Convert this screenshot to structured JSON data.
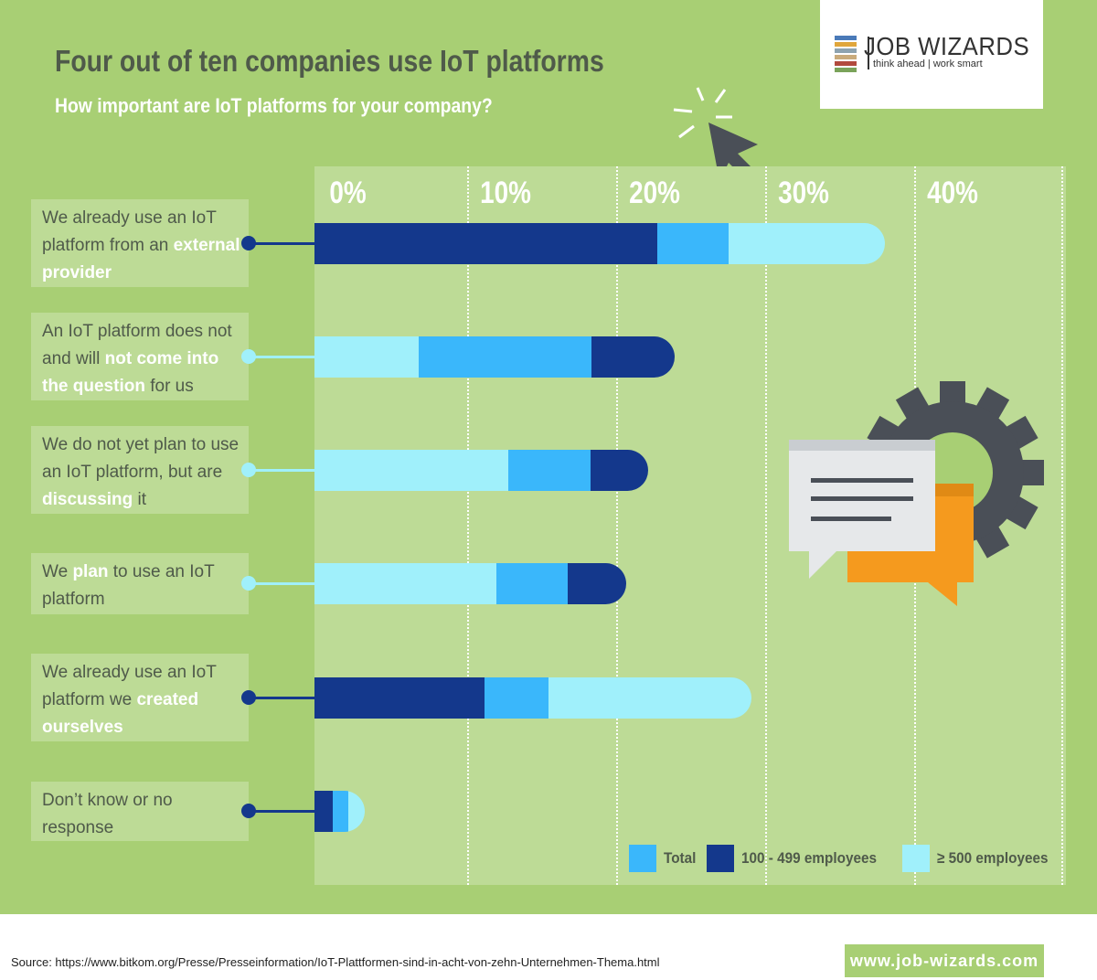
{
  "header": {
    "title": "Four out of ten companies use IoT platforms",
    "subtitle": "How important are IoT platforms for your company?"
  },
  "logo": {
    "name": "JOB WIZARDS",
    "tagline": "think ahead | work smart"
  },
  "footer": {
    "source": "Source: https://www.bitkom.org/Presse/Presseinformation/IoT-Plattformen-sind-in-acht-von-zehn-Unternehmen-Thema.html",
    "website": "www.job-wizards.com"
  },
  "colors": {
    "background": "#a8cf74",
    "plot_background": "#bddb96",
    "total": "#3ab7fb",
    "mid": "#14388c",
    "large": "#a0f0fb",
    "title": "#4f5a4a"
  },
  "chart_data": {
    "type": "bar",
    "orientation": "horizontal",
    "title": "Four out of ten companies use IoT platforms",
    "subtitle": "How important are IoT platforms for your company?",
    "x_ticks": [
      "0%",
      "10%",
      "20%",
      "30%",
      "40%"
    ],
    "xlim": [
      0,
      50
    ],
    "grid": true,
    "legend_position": "bottom-right",
    "legend": [
      {
        "key": "total",
        "label": "Total"
      },
      {
        "key": "mid",
        "label": "100 - 499 employees"
      },
      {
        "key": "large",
        "label": "≥ 500 employees"
      }
    ],
    "categories": [
      {
        "label_parts": [
          {
            "text": "We already use an IoT platform from an ",
            "bold": false
          },
          {
            "text": "external provider",
            "bold": true
          }
        ],
        "segments": [
          {
            "series": "mid",
            "value": 23
          },
          {
            "series": "total",
            "value": 4.8
          },
          {
            "series": "large",
            "value": 10.5
          }
        ]
      },
      {
        "label_parts": [
          {
            "text": "An IoT platform does not and will ",
            "bold": false
          },
          {
            "text": "not come into the question",
            "bold": true
          },
          {
            "text": " for us",
            "bold": false
          }
        ],
        "segments": [
          {
            "series": "large",
            "value": 7
          },
          {
            "series": "total",
            "value": 11.6
          },
          {
            "series": "mid",
            "value": 5.6
          }
        ]
      },
      {
        "label_parts": [
          {
            "text": "We do not yet plan to use an IoT platform, but are ",
            "bold": false
          },
          {
            "text": "discussing",
            "bold": true
          },
          {
            "text": " it",
            "bold": false
          }
        ],
        "segments": [
          {
            "series": "large",
            "value": 13
          },
          {
            "series": "total",
            "value": 5.5
          },
          {
            "series": "mid",
            "value": 3.9
          }
        ]
      },
      {
        "label_parts": [
          {
            "text": "We ",
            "bold": false
          },
          {
            "text": "plan",
            "bold": true
          },
          {
            "text": " to use an IoT platform",
            "bold": false
          }
        ],
        "segments": [
          {
            "series": "large",
            "value": 12.2
          },
          {
            "series": "total",
            "value": 4.8
          },
          {
            "series": "mid",
            "value": 3.9
          }
        ]
      },
      {
        "label_parts": [
          {
            "text": "We already use an IoT platform we ",
            "bold": false
          },
          {
            "text": "created ourselves",
            "bold": true
          }
        ],
        "segments": [
          {
            "series": "mid",
            "value": 11.4
          },
          {
            "series": "total",
            "value": 4.3
          },
          {
            "series": "large",
            "value": 13.6
          }
        ]
      },
      {
        "label_parts": [
          {
            "text": "Don’t know or no response",
            "bold": false
          }
        ],
        "segments": [
          {
            "series": "mid",
            "value": 1.2
          },
          {
            "series": "total",
            "value": 1.1
          },
          {
            "series": "large",
            "value": 1.1
          }
        ]
      }
    ]
  }
}
